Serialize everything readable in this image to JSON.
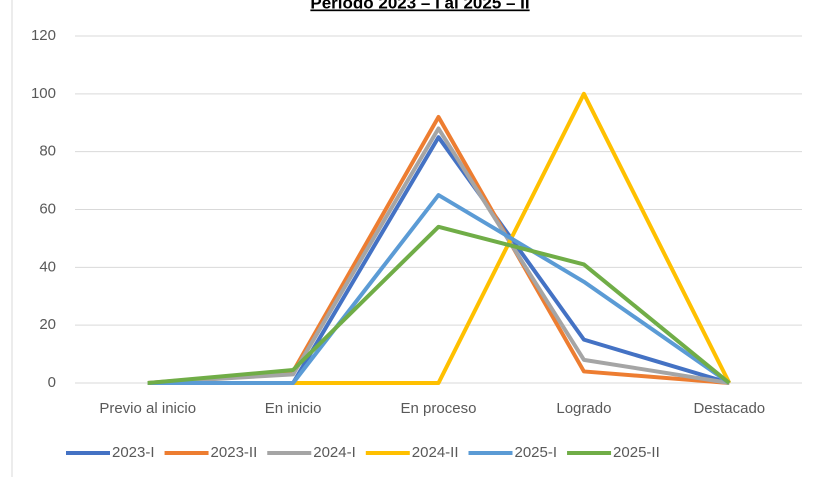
{
  "chart_data": {
    "type": "line",
    "title": "Periodo 2023 – I al 2025 – II",
    "categories": [
      "Previo al inicio",
      "En inicio",
      "En proceso",
      "Logrado",
      "Destacado"
    ],
    "series": [
      {
        "name": "2023-I",
        "color": "#4472c4",
        "values": [
          0,
          0,
          85,
          15,
          0
        ]
      },
      {
        "name": "2023-II",
        "color": "#ed7d31",
        "values": [
          0,
          4,
          92,
          4,
          0
        ]
      },
      {
        "name": "2024-I",
        "color": "#a5a5a5",
        "values": [
          0,
          3,
          88,
          8,
          0
        ]
      },
      {
        "name": "2024-II",
        "color": "#ffc000",
        "values": [
          0,
          0,
          0,
          100,
          0
        ]
      },
      {
        "name": "2025-I",
        "color": "#5b9bd5",
        "values": [
          0,
          0,
          65,
          35,
          0
        ]
      },
      {
        "name": "2025-II",
        "color": "#70ad47",
        "values": [
          0,
          4.5,
          54,
          41,
          0
        ]
      }
    ],
    "ylim": [
      0,
      120
    ],
    "yticks": [
      0,
      20,
      40,
      60,
      80,
      100,
      120
    ],
    "grid": true,
    "legend": "bottom"
  }
}
